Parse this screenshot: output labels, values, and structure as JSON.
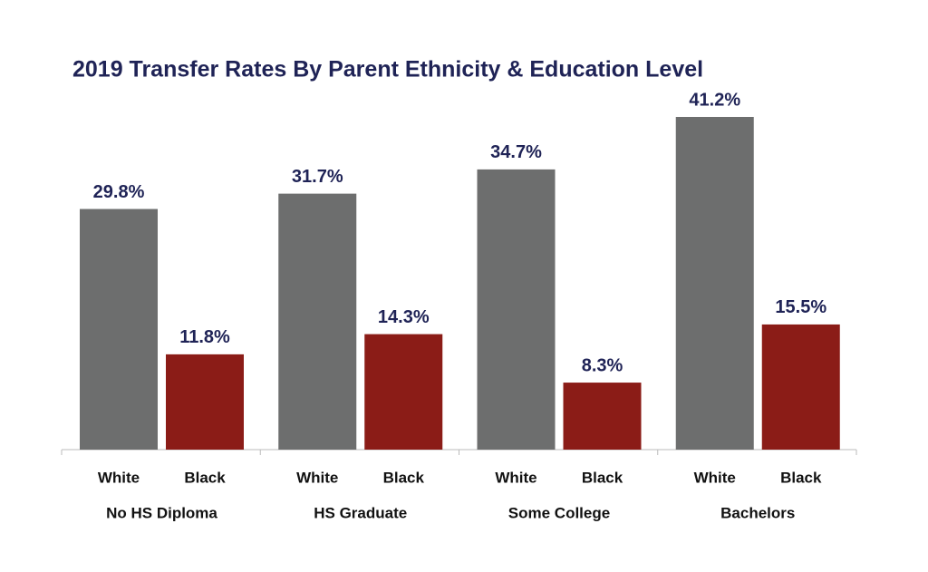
{
  "chart_data": {
    "type": "bar",
    "title": "2019 Transfer Rates By Parent Ethnicity & Education Level",
    "categories": [
      "No HS Diploma",
      "HS Graduate",
      "Some College",
      "Bachelors"
    ],
    "series": [
      {
        "name": "White",
        "color": "#6d6e6e",
        "values": [
          29.8,
          31.7,
          34.7,
          41.2
        ],
        "value_labels": [
          "29.8%",
          "31.7%",
          "34.7%",
          "41.2%"
        ]
      },
      {
        "name": "Black",
        "color": "#8b1c17",
        "values": [
          11.8,
          14.3,
          8.3,
          15.5
        ],
        "value_labels": [
          "11.8%",
          "14.3%",
          "8.3%",
          "15.5%"
        ]
      }
    ]
  }
}
